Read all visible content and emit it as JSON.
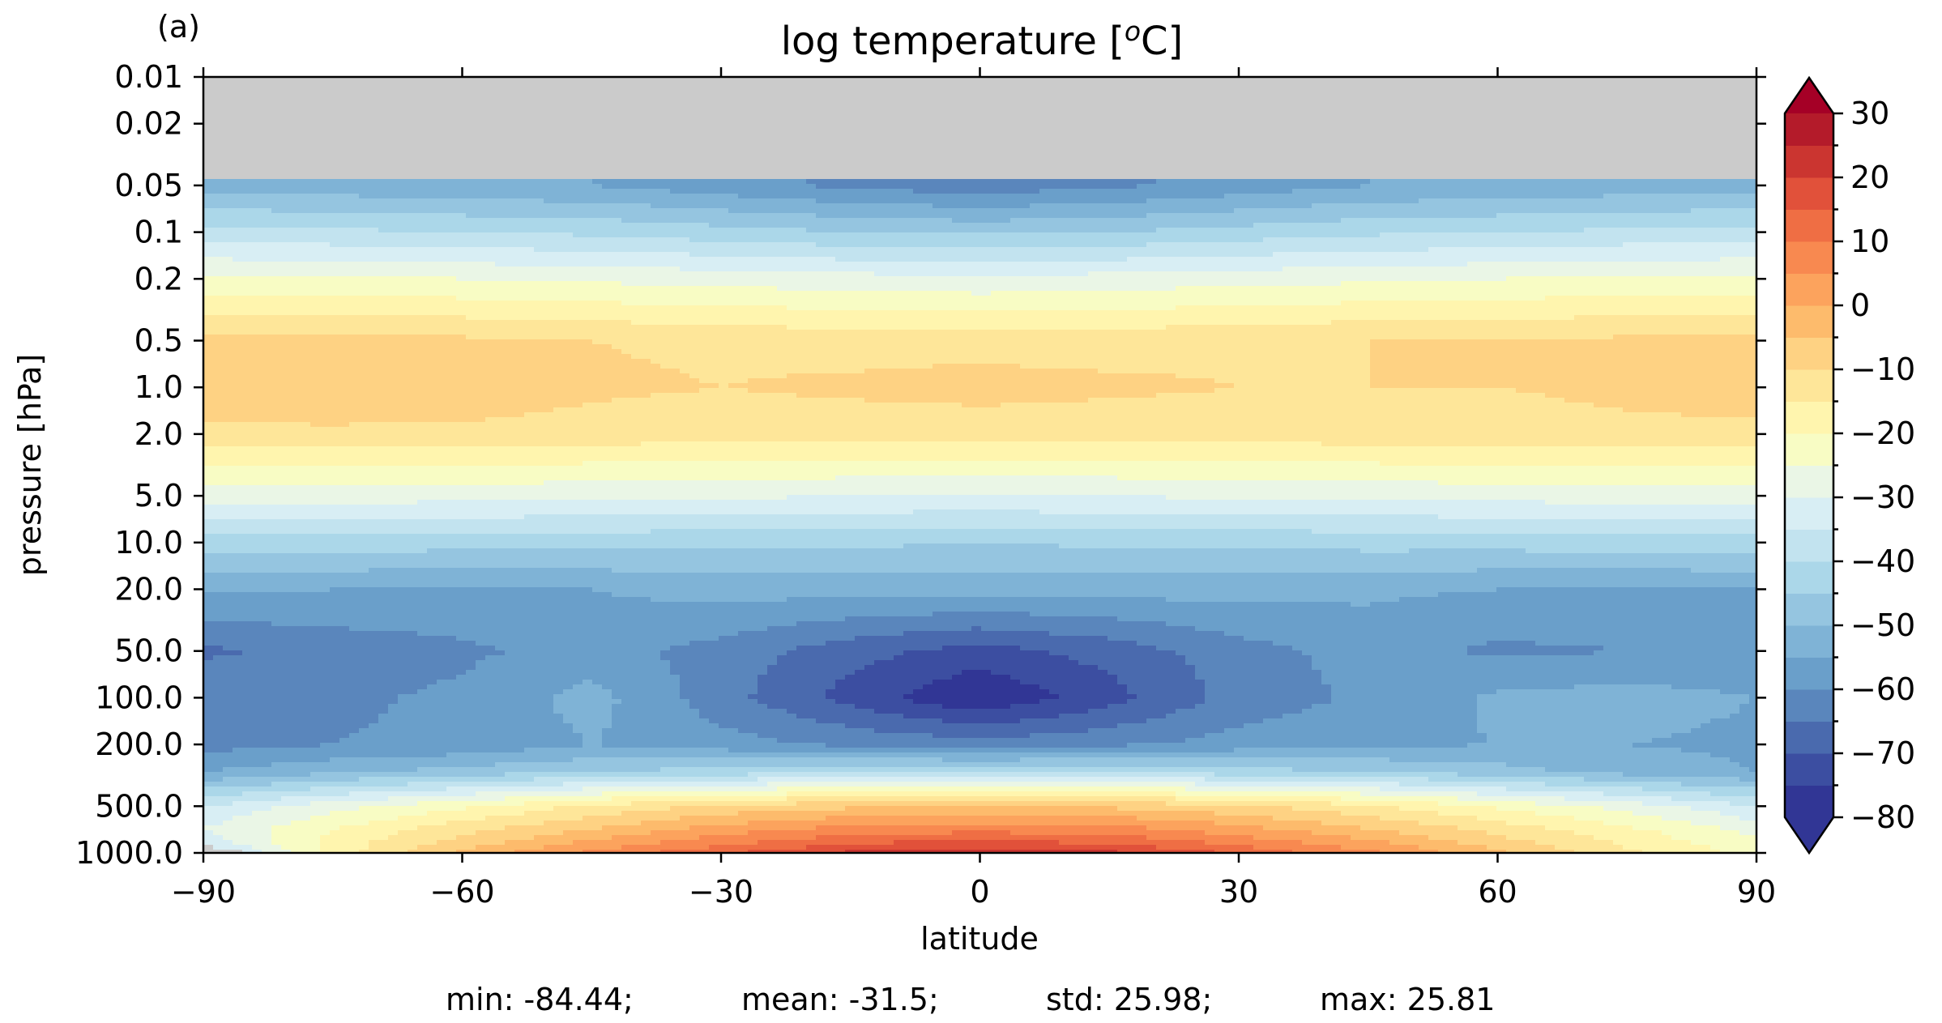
{
  "panel_label": "(a)",
  "chart_data": {
    "type": "contourf",
    "title": "log temperature [",
    "title_superscript": "o",
    "title_suffix": "C]",
    "xlabel": "latitude",
    "ylabel": "pressure [hPa]",
    "x_scale": "linear",
    "y_scale": "log",
    "y_inverted": true,
    "xlim": [
      -90,
      90
    ],
    "ylim": [
      1000.0,
      0.01
    ],
    "x_ticks": [
      -90,
      -60,
      -30,
      0,
      30,
      60,
      90
    ],
    "x_tick_labels": [
      "−90",
      "−60",
      "−30",
      "0",
      "30",
      "60",
      "90"
    ],
    "y_ticks": [
      0.01,
      0.02,
      0.05,
      0.1,
      0.2,
      0.5,
      1.0,
      2.0,
      5.0,
      10.0,
      20.0,
      50.0,
      100.0,
      200.0,
      500.0,
      1000.0
    ],
    "y_tick_labels": [
      "0.01",
      "0.02",
      "0.05",
      "0.1",
      "0.2",
      "0.5",
      "1.0",
      "2.0",
      "5.0",
      "10.0",
      "20.0",
      "50.0",
      "100.0",
      "200.0",
      "500.0",
      "1000.0"
    ],
    "missing_data_color": "#cbcbcb",
    "missing_above_hPa": 0.044,
    "colorbar": {
      "min": -80,
      "max": 30,
      "step": 5,
      "extend": "both",
      "colormap": "RdYlBu_r",
      "ticks": [
        30,
        20,
        10,
        0,
        -10,
        -20,
        -30,
        -40,
        -50,
        -60,
        -70,
        -80
      ],
      "tick_labels": [
        "30",
        "20",
        "10",
        "0",
        "−10",
        "−20",
        "−30",
        "−40",
        "−50",
        "−60",
        "−70",
        "−80"
      ],
      "colors": [
        "#313695",
        "#3c4ea1",
        "#4a6aae",
        "#5a86bc",
        "#6a9fca",
        "#7fb3d6",
        "#95c5e0",
        "#abd7e9",
        "#c2e3ef",
        "#d8eef4",
        "#eaf6e6",
        "#f8fcc4",
        "#fff5ae",
        "#fee699",
        "#fed283",
        "#fdbb6c",
        "#fca35d",
        "#f88950",
        "#ef6e44",
        "#e1513a",
        "#cb3530",
        "#b41b2a"
      ],
      "under_color": "#313695",
      "over_color": "#a50026"
    },
    "latitude_nodes": [
      -90,
      -75,
      -60,
      -45,
      -30,
      -15,
      0,
      15,
      30,
      45,
      60,
      75,
      90
    ],
    "pressure_levels": [
      0.05,
      0.1,
      0.2,
      0.5,
      1.0,
      2.0,
      5.0,
      10.0,
      20.0,
      50.0,
      100.0,
      200.0,
      300.0,
      500.0,
      700.0,
      850.0,
      1000.0
    ],
    "temperature": [
      [
        -52,
        -53,
        -54,
        -55,
        -58,
        -61,
        -63,
        -61,
        -58,
        -55,
        -54,
        -53,
        -52
      ],
      [
        -38,
        -39,
        -40,
        -41,
        -43,
        -45,
        -46,
        -45,
        -43,
        -41,
        -40,
        -39,
        -38
      ],
      [
        -24,
        -24,
        -25,
        -26,
        -27,
        -28,
        -29,
        -28,
        -27,
        -26,
        -25,
        -24,
        -24
      ],
      [
        -9,
        -8,
        -9,
        -10,
        -11,
        -12,
        -12,
        -12,
        -11,
        -10,
        -10,
        -9,
        -9
      ],
      [
        -7,
        -6,
        -7,
        -9,
        -10,
        -9,
        -8,
        -9,
        -10,
        -10,
        -10,
        -9,
        -8
      ],
      [
        -11,
        -11,
        -11,
        -12,
        -13,
        -13,
        -13,
        -13,
        -13,
        -12,
        -12,
        -11,
        -11
      ],
      [
        -28,
        -28,
        -28,
        -29,
        -29,
        -30,
        -30,
        -30,
        -29,
        -29,
        -28,
        -28,
        -28
      ],
      [
        -42,
        -42,
        -43,
        -43,
        -44,
        -44,
        -45,
        -44,
        -44,
        -43,
        -43,
        -42,
        -42
      ],
      [
        -54,
        -55,
        -56,
        -55,
        -53,
        -53,
        -53,
        -53,
        -53,
        -54,
        -55,
        -56,
        -55
      ],
      [
        -66,
        -63,
        -61,
        -58,
        -62,
        -68,
        -72,
        -68,
        -62,
        -58,
        -61,
        -60,
        -58
      ],
      [
        -61,
        -61,
        -59,
        -53,
        -63,
        -72,
        -80,
        -72,
        -63,
        -59,
        -54,
        -53,
        -55
      ],
      [
        -62,
        -60,
        -59,
        -55,
        -58,
        -61,
        -63,
        -61,
        -58,
        -56,
        -55,
        -55,
        -56
      ],
      [
        -55,
        -51,
        -48,
        -45,
        -43,
        -41,
        -40,
        -41,
        -43,
        -45,
        -48,
        -52,
        -55
      ],
      [
        -35,
        -27,
        -21,
        -14,
        -9,
        -6,
        -5,
        -6,
        -9,
        -14,
        -21,
        -27,
        -35
      ],
      [
        -30,
        -20,
        -12,
        -5,
        2,
        7,
        8,
        7,
        2,
        -5,
        -12,
        -19,
        -27
      ],
      [
        -33,
        -18,
        -8,
        1,
        8,
        14,
        16,
        14,
        8,
        1,
        -8,
        -16,
        -24
      ],
      [
        -40,
        -18,
        -4,
        6,
        14,
        21,
        24,
        21,
        14,
        6,
        -4,
        -14,
        -22
      ]
    ],
    "stats": {
      "min": "min: -84.44;",
      "mean": "mean: -31.5;",
      "std": "std: 25.98;",
      "max": "max: 25.81"
    }
  }
}
